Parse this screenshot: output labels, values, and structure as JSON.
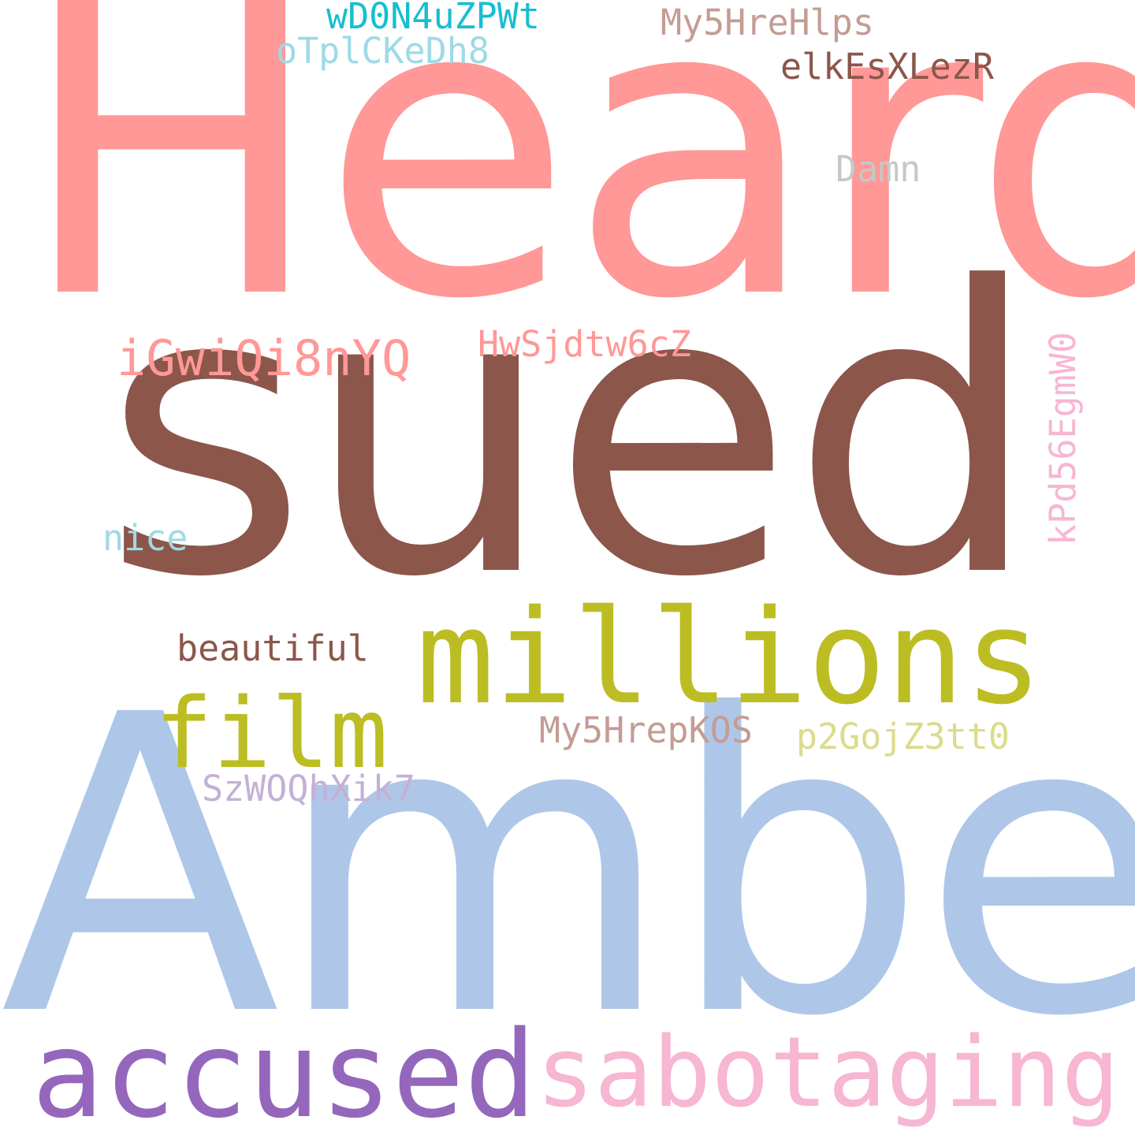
{
  "words": [
    {
      "id": "heard",
      "text": "Heard",
      "color": "#ff9896"
    },
    {
      "id": "sued",
      "text": "sued",
      "color": "#8c564b"
    },
    {
      "id": "amber",
      "text": "Amber",
      "color": "#aec7e8"
    },
    {
      "id": "millions",
      "text": "millions",
      "color": "#bcbd22"
    },
    {
      "id": "accused",
      "text": "accused",
      "color": "#9467bd"
    },
    {
      "id": "sabotaging",
      "text": "sabotaging",
      "color": "#f7b6d2"
    },
    {
      "id": "film",
      "text": "film",
      "color": "#bcbd22"
    },
    {
      "id": "wd0n4uzpwt",
      "text": "wD0N4uZPWt",
      "color": "#17becf"
    },
    {
      "id": "otplckedh8",
      "text": "oTplCKeDh8",
      "color": "#9edae5"
    },
    {
      "id": "my5hrehlps",
      "text": "My5HreHlps",
      "color": "#c49c94"
    },
    {
      "id": "elkesxlezr",
      "text": "elkEsXLezR",
      "color": "#8c564b"
    },
    {
      "id": "damn",
      "text": "Damn",
      "color": "#c7c7c7"
    },
    {
      "id": "igwiqi8nyq",
      "text": "iGwiQi8nYQ",
      "color": "#ff9896"
    },
    {
      "id": "hwsjdtw6cz",
      "text": "HwSjdtw6cZ",
      "color": "#ff9896"
    },
    {
      "id": "kpd56egmw0",
      "text": "kPd56EgmW0",
      "color": "#f7b6d2"
    },
    {
      "id": "nice",
      "text": "nice",
      "color": "#9edae5"
    },
    {
      "id": "beautiful",
      "text": "beautiful",
      "color": "#8c564b"
    },
    {
      "id": "my5hrepkos",
      "text": "My5HrepKOS",
      "color": "#c49c94"
    },
    {
      "id": "p2gojz3tt0",
      "text": "p2GojZ3tt0",
      "color": "#dbdb8d"
    },
    {
      "id": "szwoqhxik7",
      "text": "SzWOQhXik7",
      "color": "#c5b0d5"
    }
  ]
}
